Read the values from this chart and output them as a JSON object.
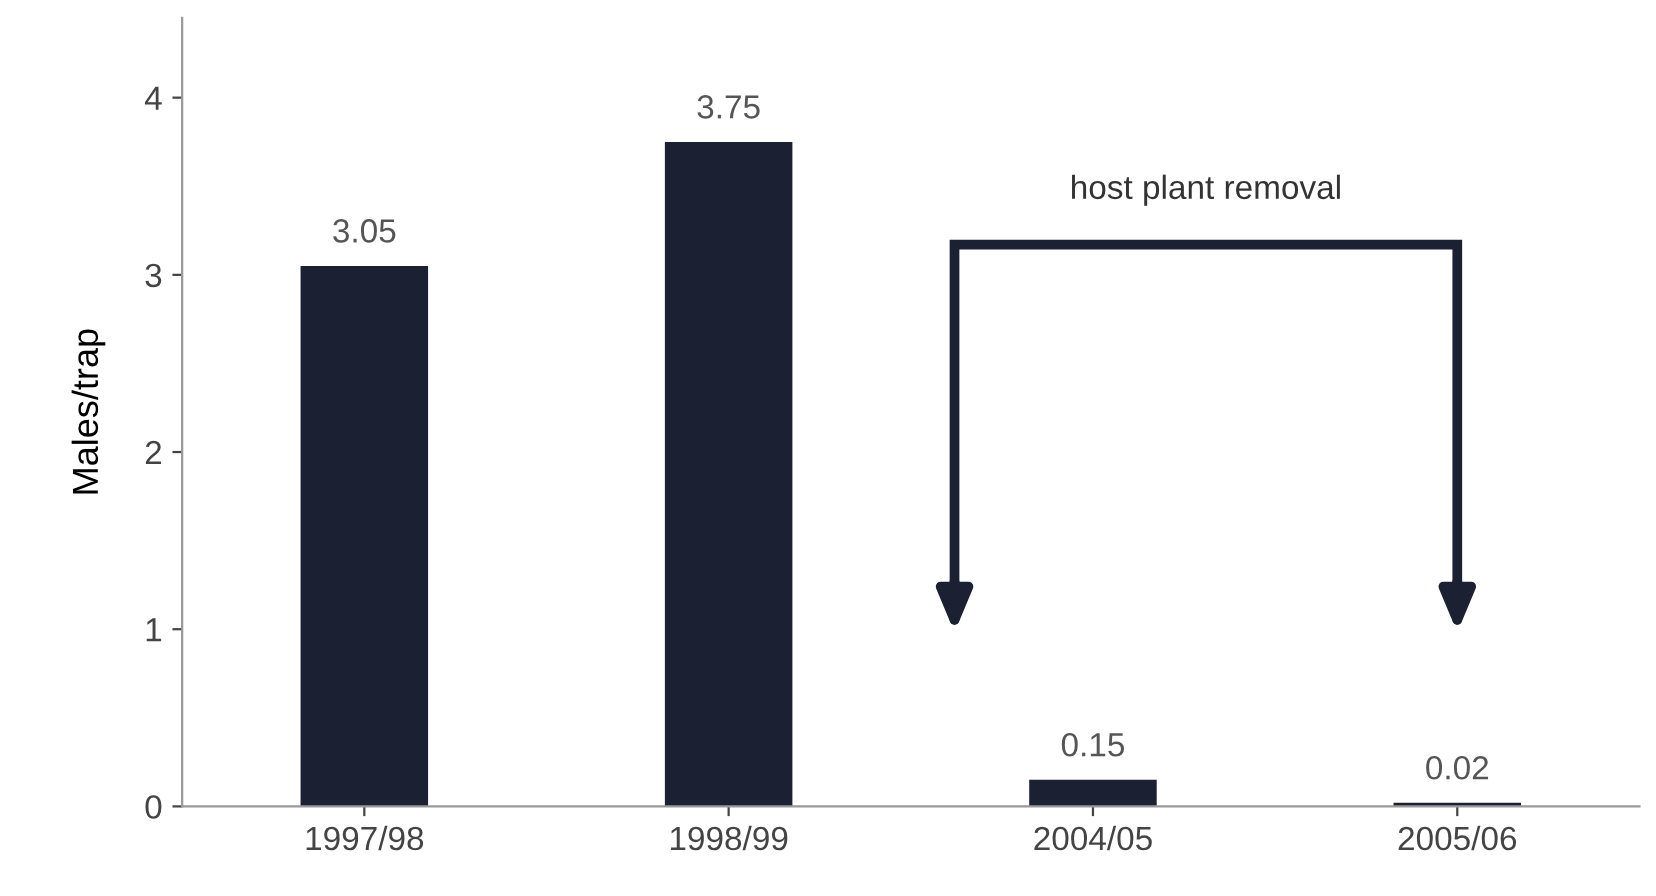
{
  "chart_data": {
    "type": "bar",
    "ylabel": "Males/trap",
    "categories": [
      "1997/98",
      "1998/99",
      "2004/05",
      "2005/06"
    ],
    "values": [
      3.05,
      3.75,
      0.15,
      0.02
    ],
    "color": "#1b2033",
    "ylim": [
      0,
      4.45
    ],
    "yticks": [
      0,
      1,
      2,
      3,
      4
    ],
    "grid": false,
    "data_labels": true,
    "annotations": [
      "host plant removal"
    ]
  }
}
